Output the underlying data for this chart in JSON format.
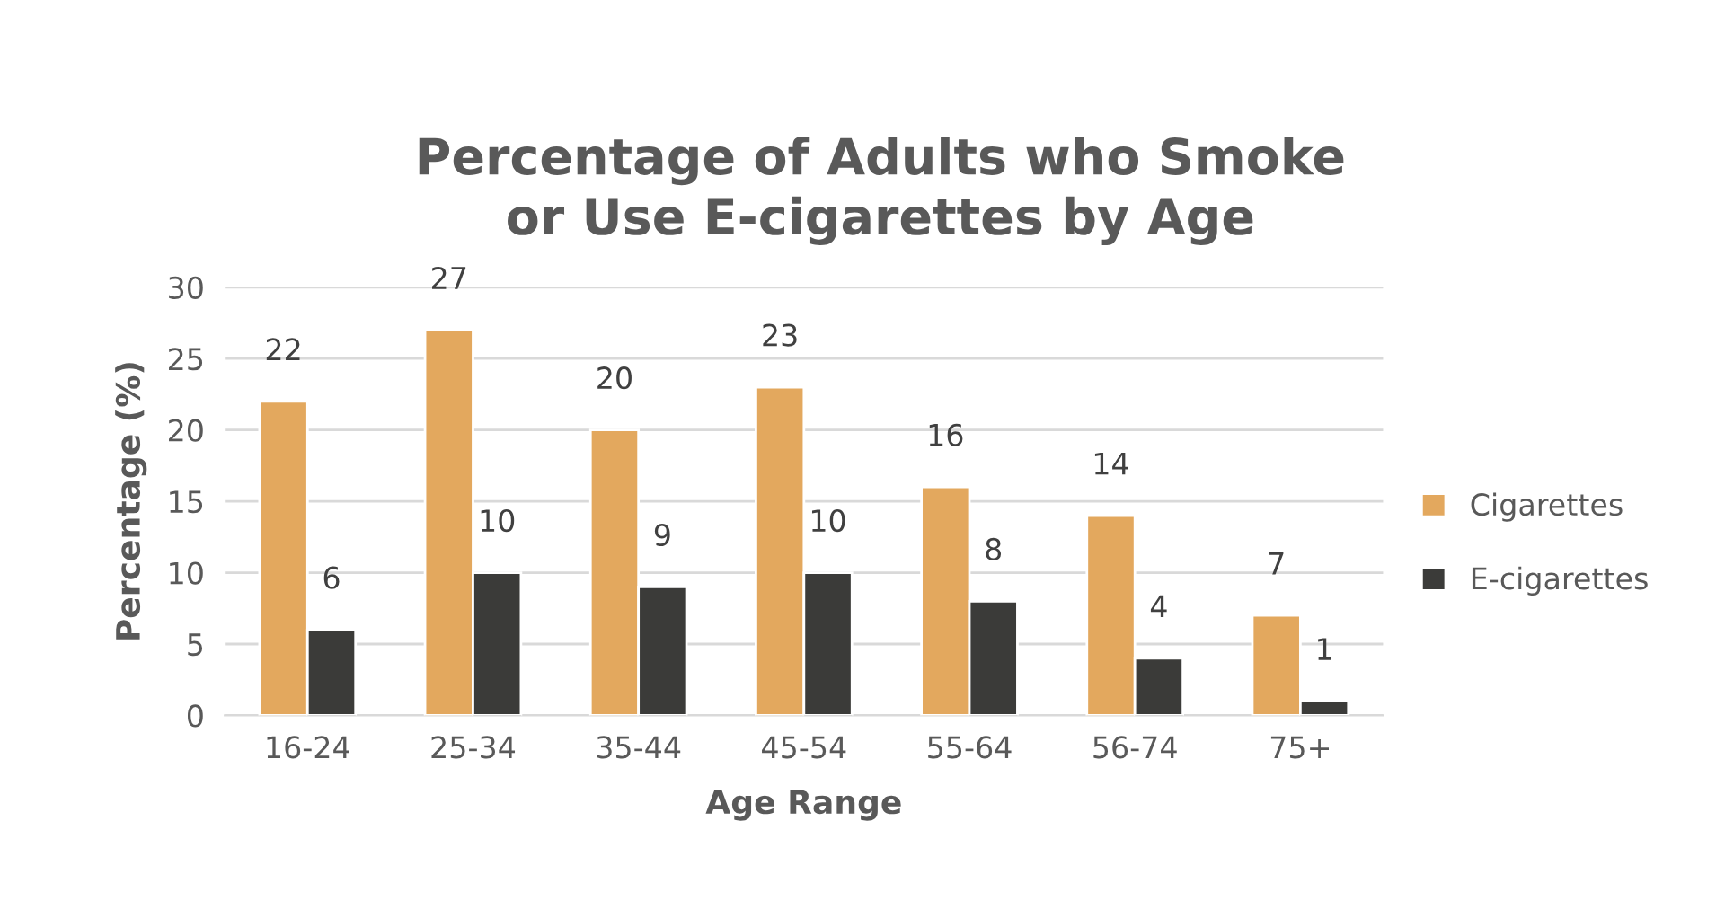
{
  "chart_data": {
    "type": "bar",
    "title": "Percentage of Adults who Smoke\nor Use E-cigarettes by Age",
    "xlabel": "Age Range",
    "ylabel": "Percentage (%)",
    "categories": [
      "16-24",
      "25-34",
      "35-44",
      "45-54",
      "55-64",
      "56-74",
      "75+"
    ],
    "series": [
      {
        "name": "Cigarettes",
        "color": "#e3a85e",
        "values": [
          22,
          27,
          20,
          23,
          16,
          14,
          7
        ]
      },
      {
        "name": "E-cigarettes",
        "color": "#3b3b39",
        "values": [
          6,
          10,
          9,
          10,
          8,
          4,
          1
        ]
      }
    ],
    "ylim": [
      0,
      30
    ],
    "yticks": [
      0,
      5,
      10,
      15,
      20,
      25,
      30
    ],
    "grid": "y",
    "legend": "right",
    "data_labels": true
  }
}
